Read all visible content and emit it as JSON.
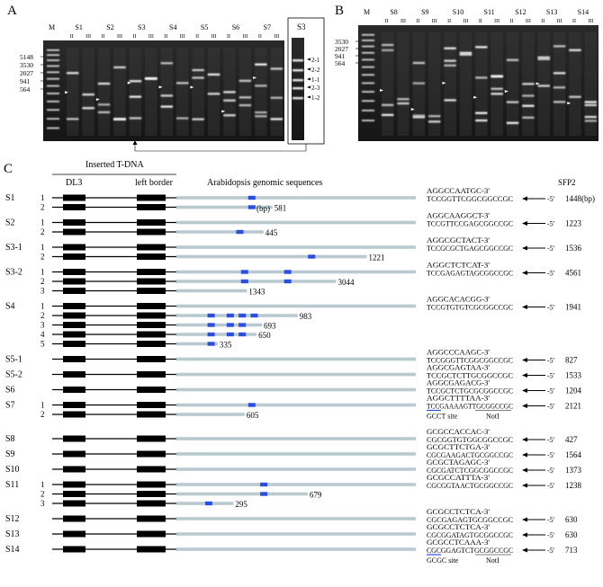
{
  "panel_a": {
    "letter": "A",
    "sample_labels": [
      "M",
      "S1",
      "S2",
      "S3",
      "S4",
      "S5",
      "S6",
      "S7"
    ],
    "lane_numerals": [
      "II",
      "III"
    ],
    "marker_sizes": [
      "5148",
      "3530",
      "2027",
      "941",
      "564"
    ],
    "inset_title": "S3",
    "inset_bands": [
      "2-1",
      "2-2",
      "1-1",
      "2-3",
      "1-2"
    ]
  },
  "panel_b": {
    "letter": "B",
    "sample_labels": [
      "M",
      "S8",
      "S9",
      "S10",
      "S11",
      "S12",
      "S13",
      "S14"
    ],
    "lane_numerals": [
      "II",
      "III"
    ],
    "marker_sizes": [
      "3530",
      "2027",
      "941",
      "564"
    ]
  },
  "panel_c": {
    "letter": "C",
    "header_tdna": "Inserted T-DNA",
    "header_dl3": "DL3",
    "header_lb": "left border",
    "header_genomic": "Arabidopsis genomic sequences",
    "header_primer": "SFP2",
    "unit": "(bp)",
    "groups": [
      {
        "label": "S1",
        "rows": [
          {
            "num": "1",
            "seq1": "AGGCCAATGC-3'",
            "seq2": "TCCGGTTCGGCGGCCGC",
            "end": "-5'",
            "size": "1448(bp)",
            "blue": [
              0.3
            ],
            "len": null
          },
          {
            "num": "2",
            "len": "581",
            "blue": [
              0.3
            ]
          }
        ]
      },
      {
        "label": "S2",
        "rows": [
          {
            "num": "1",
            "seq1": "AGGCAAGGCT-3'",
            "seq2": "TCCGTTCCGAGCGGCCGC",
            "end": "-5'",
            "size": "1223",
            "blue": []
          },
          {
            "num": "2",
            "len": "445",
            "blue": [
              0.25
            ]
          }
        ]
      },
      {
        "label": "S3-1",
        "rows": [
          {
            "num": "1",
            "seq1": "AGGCGCTACT-3'",
            "seq2": "TCCGCGCTGAGCGGCCGC",
            "end": "-5'",
            "size": "1536",
            "blue": []
          },
          {
            "num": "2",
            "len": "1221",
            "blue": [
              0.55
            ]
          }
        ]
      },
      {
        "label": "S3-2",
        "rows": [
          {
            "num": "1",
            "seq1": "AGGCTCTCAT-3'",
            "seq2": "TCCGAGAGTAGCGGCCGC",
            "end": "-5'",
            "size": "4561",
            "blue": [
              0.27,
              0.45
            ]
          },
          {
            "num": "2",
            "len": "3044",
            "blue": [
              0.27,
              0.45
            ]
          },
          {
            "num": "3",
            "len": "1343",
            "blue": []
          }
        ]
      },
      {
        "label": "S4",
        "rows": [
          {
            "num": "1",
            "seq1": "AGGCACACGG-3'",
            "seq2": "TCCGTGTGTCGCGGCCGC",
            "end": "-5'",
            "size": "1941",
            "blue": []
          },
          {
            "num": "2",
            "len": "983",
            "blue": [
              0.13,
              0.21,
              0.26,
              0.31
            ]
          },
          {
            "num": "3",
            "len": "693",
            "blue": [
              0.13,
              0.21,
              0.26
            ]
          },
          {
            "num": "4",
            "len": "650",
            "blue": [
              0.13,
              0.21,
              0.26
            ]
          },
          {
            "num": "5",
            "len": "335",
            "blue": [
              0.13
            ]
          }
        ]
      },
      {
        "label": "S5-1",
        "rows": [
          {
            "num": "",
            "seq1": "AGGCCCAAGC-3'",
            "seq2": "TCCGGGTTCGGCGGCCGC",
            "end": "-5'",
            "size": "827",
            "blue": []
          }
        ]
      },
      {
        "label": "S5-2",
        "rows": [
          {
            "num": "",
            "seq1": "AGGCGAGTAA-3'",
            "seq2": "TCCGCTCTTGCGGCCGC",
            "end": "-5'",
            "size": "1533",
            "blue": []
          }
        ]
      },
      {
        "label": "S6",
        "rows": [
          {
            "num": "",
            "seq1": "AGGCGAGACG-3'",
            "seq2": "TCCGCTCTGCGCGGCCGC",
            "end": "-5'",
            "size": "1204",
            "blue": []
          }
        ]
      },
      {
        "label": "S7",
        "rows": [
          {
            "num": "1",
            "seq1": "AGGCTTTTAA-3'",
            "seq2": "TCCGAAAAGTTGCGGCCGC",
            "end": "-5'",
            "size": "2121",
            "blue": [
              0.3
            ]
          },
          {
            "num": "2",
            "len": "605",
            "blue": [
              0.3
            ]
          }
        ]
      },
      {
        "label": "S8",
        "rows": [
          {
            "num": "",
            "seq1": "GCGCCACCAC-3'",
            "seq2": "CGCGGTGTGGCGGCCGC",
            "end": "-5'",
            "size": "427",
            "blue": []
          }
        ]
      },
      {
        "label": "S9",
        "rows": [
          {
            "num": "",
            "seq1": "GCGCTTCTGA-3'",
            "seq2": "CGCGAAGACTGCGGCCGC",
            "end": "-5'",
            "size": "1564",
            "blue": []
          }
        ]
      },
      {
        "label": "S10",
        "rows": [
          {
            "num": "",
            "seq1": "GCGCTAGAGC-3'",
            "seq2": "CGCGATCTCGGCGGCCGC",
            "end": "-5'",
            "size": "1373",
            "blue": []
          }
        ]
      },
      {
        "label": "S11",
        "rows": [
          {
            "num": "1",
            "seq1": "GCGCCATTTA-3'",
            "seq2": "CGCGGTAACTGCGGCCGC",
            "end": "-5'",
            "size": "1238",
            "blue": [
              0.35
            ]
          },
          {
            "num": "2",
            "len": "679",
            "blue": [
              0.35
            ]
          },
          {
            "num": "3",
            "len": "295",
            "blue": [
              0.12
            ]
          }
        ]
      },
      {
        "label": "S12",
        "rows": [
          {
            "num": "",
            "seq1": "GCGCCTCTCA-3'",
            "seq2": "CGCGAGAGTGCGGCCGC",
            "end": "-5'",
            "size": "630",
            "blue": []
          }
        ]
      },
      {
        "label": "S13",
        "rows": [
          {
            "num": "",
            "seq1": "GCGCCTCTCA-3'",
            "seq2": "CGCGGATAGTGCGGCCGC",
            "end": "-5'",
            "size": "630",
            "blue": []
          }
        ]
      },
      {
        "label": "S14",
        "rows": [
          {
            "num": "",
            "seq1": "GCGCCTCAAA-3'",
            "seq2": "CGCGGAGTCTGCGGCCGC",
            "end": "-5'",
            "size": "713",
            "blue": []
          }
        ]
      }
    ],
    "site_notes": [
      {
        "site": "GCCT site",
        "notI": "NotI"
      },
      {
        "site": "GCGC site",
        "notI": "NotI"
      }
    ]
  }
}
